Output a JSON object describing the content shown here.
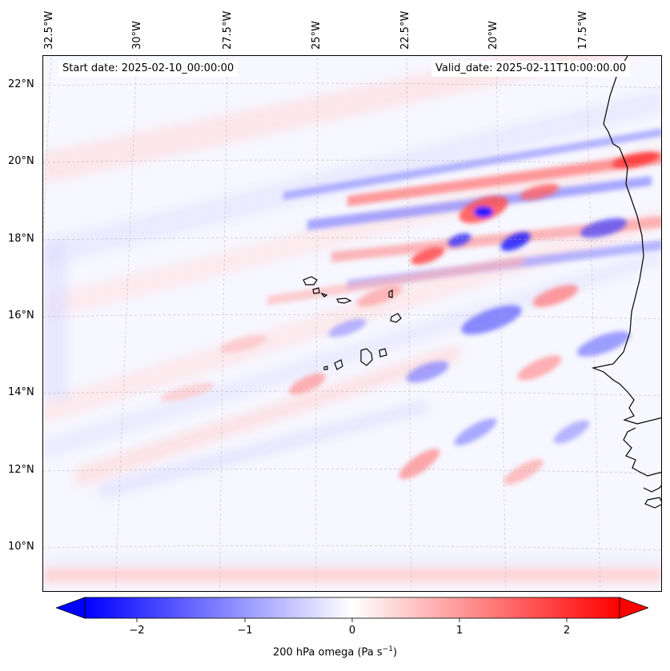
{
  "map": {
    "start_date": "Start date: 2025-02-10_00:00:00",
    "valid_date": "Valid_date: 2025-02-11T10:00:00.00",
    "longitude_labels": [
      "32.5°W",
      "30°W",
      "27.5°W",
      "25°W",
      "22.5°W",
      "20°W",
      "17.5°W"
    ],
    "latitude_labels": [
      "22°N",
      "20°N",
      "18°N",
      "16°N",
      "14°N",
      "12°N",
      "10°N"
    ],
    "field": "200 hPa omega",
    "colors": {
      "negative": "#0000ff",
      "zero": "#ffffff",
      "positive": "#ff0000",
      "coastline": "#000000"
    }
  },
  "colorbar": {
    "title_main": "200 hPa omega (Pa s",
    "title_sup": "−1",
    "title_end": ")",
    "ticks": [
      "−2",
      "−1",
      "0",
      "1",
      "2"
    ],
    "range": [
      -2.75,
      2.75
    ]
  }
}
